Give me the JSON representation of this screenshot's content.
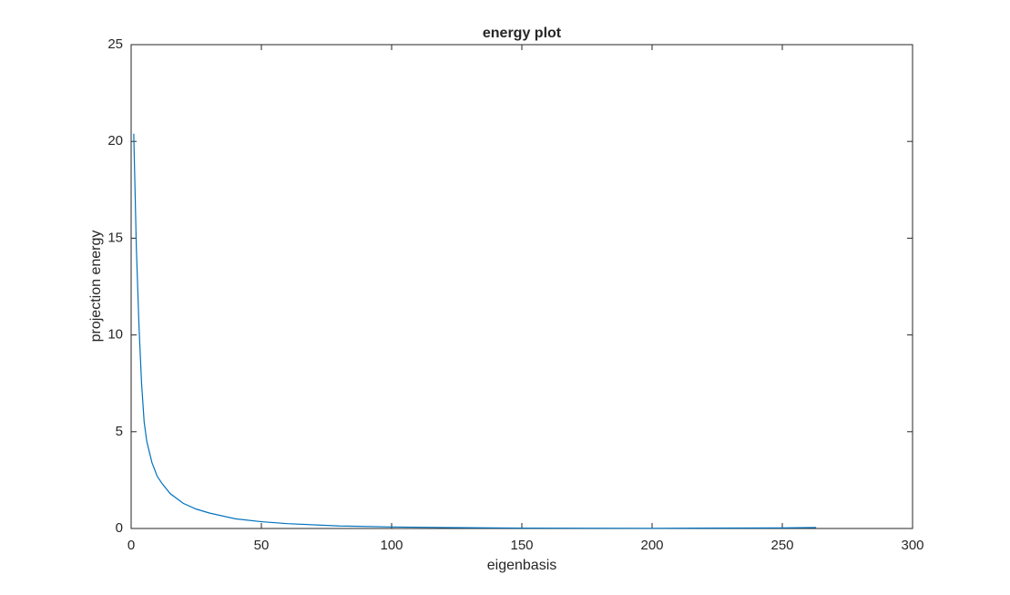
{
  "chart_data": {
    "type": "line",
    "title": "energy plot",
    "x_label": "eigenbasis",
    "y_label": "projection energy",
    "x": [
      1,
      2,
      3,
      4,
      5,
      6,
      8,
      10,
      12,
      15,
      20,
      25,
      30,
      40,
      50,
      60,
      80,
      100,
      120,
      150,
      200,
      250,
      263
    ],
    "series": [
      {
        "color": "#0072bd",
        "values": [
          20.4,
          14.5,
          10.5,
          7.5,
          5.5,
          4.5,
          3.4,
          2.7,
          2.3,
          1.8,
          1.3,
          1.0,
          0.8,
          0.5,
          0.35,
          0.25,
          0.13,
          0.08,
          0.05,
          0.02,
          0.01,
          0.03,
          0.05
        ]
      }
    ],
    "xlim": [
      0,
      300
    ],
    "xticks": [
      0,
      50,
      100,
      150,
      200,
      250,
      300
    ],
    "ylim": [
      0,
      25
    ],
    "yticks": [
      0,
      5,
      10,
      15,
      20,
      25
    ],
    "grid": false
  }
}
